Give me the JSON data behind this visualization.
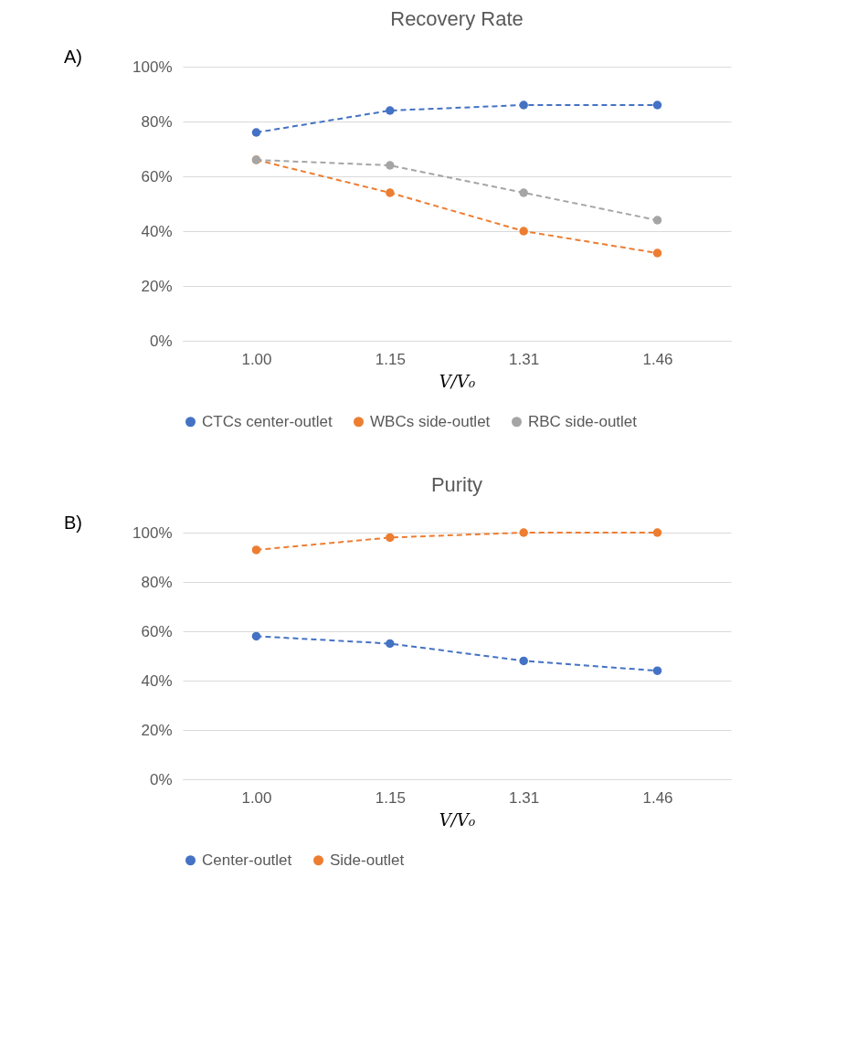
{
  "chart_data": [
    {
      "type": "line",
      "title": "Recovery Rate",
      "xlabel": "V/V₀",
      "annotations": [
        "A)"
      ],
      "categories": [
        "1.00",
        "1.15",
        "1.31",
        "1.46"
      ],
      "series": [
        {
          "name": "CTCs center-outlet",
          "color": "#4472c4",
          "values": [
            76,
            84,
            86,
            86
          ]
        },
        {
          "name": "WBCs side-outlet",
          "color": "#ed7d31",
          "values": [
            66,
            54,
            40,
            32
          ]
        },
        {
          "name": "RBC side-outlet",
          "color": "#a5a5a5",
          "values": [
            66,
            64,
            54,
            44
          ]
        }
      ],
      "ylim": [
        0,
        100
      ],
      "yticks": [
        {
          "value": 0,
          "label": "0%"
        },
        {
          "value": 20,
          "label": "20%"
        },
        {
          "value": 40,
          "label": "40%"
        },
        {
          "value": 60,
          "label": "60%"
        },
        {
          "value": 80,
          "label": "80%"
        },
        {
          "value": 100,
          "label": "100%"
        }
      ],
      "grid": "y",
      "legend": "bottom",
      "marker": "circle",
      "line_style": "dashed"
    },
    {
      "type": "line",
      "title": "Purity",
      "xlabel": "V/V₀",
      "annotations": [
        "B)"
      ],
      "categories": [
        "1.00",
        "1.15",
        "1.31",
        "1.46"
      ],
      "series": [
        {
          "name": "Center-outlet",
          "color": "#4472c4",
          "values": [
            58,
            55,
            48,
            44
          ]
        },
        {
          "name": "Side-outlet",
          "color": "#ed7d31",
          "values": [
            93,
            98,
            100,
            100
          ]
        }
      ],
      "ylim": [
        0,
        100
      ],
      "yticks": [
        {
          "value": 0,
          "label": "0%"
        },
        {
          "value": 20,
          "label": "20%"
        },
        {
          "value": 40,
          "label": "40%"
        },
        {
          "value": 60,
          "label": "60%"
        },
        {
          "value": 80,
          "label": "80%"
        },
        {
          "value": 100,
          "label": "100%"
        }
      ],
      "grid": "y",
      "legend": "bottom",
      "marker": "circle",
      "line_style": "dashed"
    }
  ]
}
